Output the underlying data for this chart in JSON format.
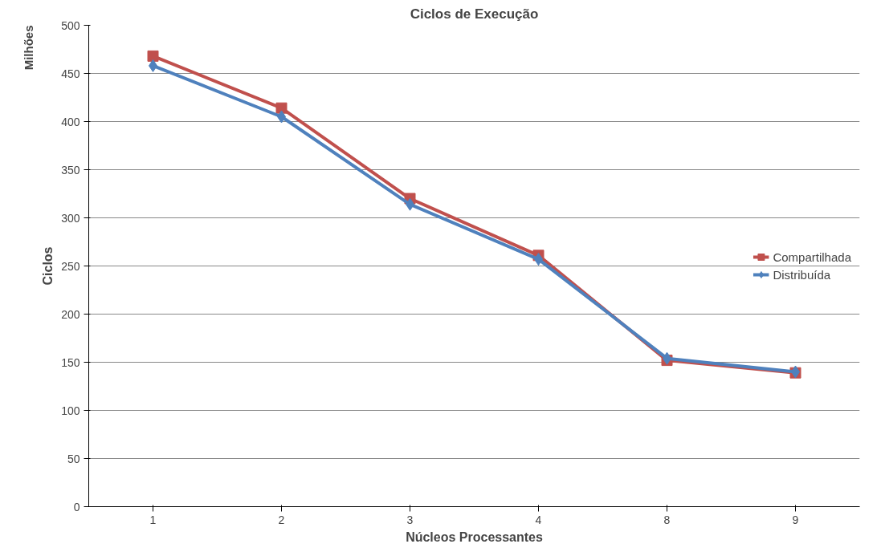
{
  "chart_data": {
    "type": "line",
    "title": "Ciclos de Execução",
    "xlabel": "Núcleos Processantes",
    "ylabel": "Ciclos",
    "annotations": [
      "Milhões"
    ],
    "categories": [
      "1",
      "2",
      "3",
      "4",
      "8",
      "9"
    ],
    "series": [
      {
        "name": "Compartilhada",
        "color": "#c0504d",
        "marker": "square",
        "values": [
          468,
          414,
          320,
          261,
          152,
          139
        ]
      },
      {
        "name": "Distribuída",
        "color": "#4f81bd",
        "marker": "diamond",
        "values": [
          458,
          405,
          314,
          257,
          154,
          140
        ]
      }
    ],
    "ylim": [
      0,
      500
    ],
    "yticks": [
      0,
      50,
      100,
      150,
      200,
      250,
      300,
      350,
      400,
      450,
      500
    ],
    "grid": "y",
    "legend": "right",
    "line_style": "solid"
  }
}
